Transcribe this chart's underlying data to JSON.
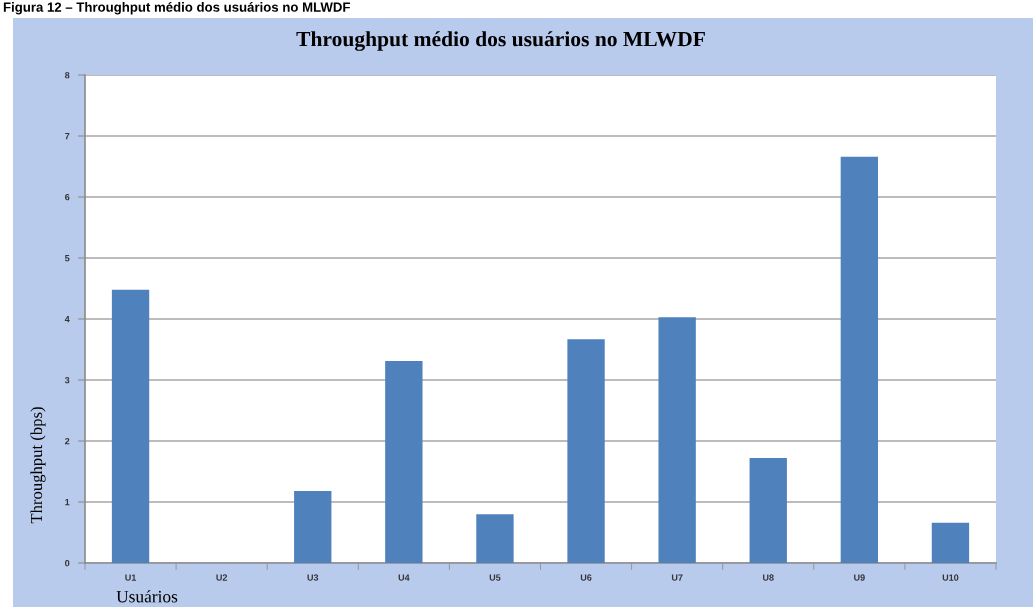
{
  "chart_data": {
    "type": "bar",
    "title": "Throughput médio dos usuários no MLWDF",
    "xlabel": "Usuários",
    "ylabel": "Throughput (bps)",
    "annotations": [
      "Figura 12 – Throughput médio dos usuários no MLWDF"
    ],
    "categories": [
      "U1",
      "U2",
      "U3",
      "U4",
      "U5",
      "U6",
      "U7",
      "U8",
      "U9",
      "U10"
    ],
    "values": [
      4.48,
      0,
      1.18,
      3.31,
      0.8,
      3.67,
      4.03,
      1.72,
      6.66,
      0.66
    ],
    "color": "#4f81bd",
    "ylim": [
      0,
      8
    ],
    "yticks": [
      0,
      1,
      2,
      3,
      4,
      5,
      6,
      7,
      8
    ],
    "grid": "y"
  }
}
